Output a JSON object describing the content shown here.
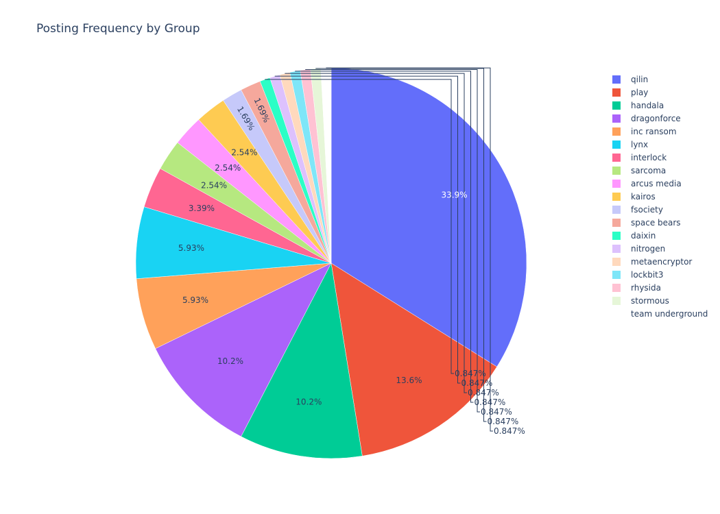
{
  "chart_data": {
    "type": "pie",
    "title": "Posting Frequency by Group",
    "labels": [
      "qilin",
      "play",
      "handala",
      "dragonforce",
      "inc ransom",
      "lynx",
      "interlock",
      "sarcoma",
      "arcus media",
      "kairos",
      "fsociety",
      "space bears",
      "daixin",
      "nitrogen",
      "metaencryptor",
      "lockbit3",
      "rhysida",
      "stormous",
      "team underground"
    ],
    "values": [
      40,
      16,
      12,
      12,
      7,
      7,
      4,
      3,
      3,
      3,
      2,
      2,
      1,
      1,
      1,
      1,
      1,
      1,
      1
    ],
    "percent_labels": [
      "33.9%",
      "13.6%",
      "10.2%",
      "10.2%",
      "5.93%",
      "5.93%",
      "3.39%",
      "2.54%",
      "2.54%",
      "2.54%",
      "1.69%",
      "1.69%",
      "0.847%",
      "0.847%",
      "0.847%",
      "0.847%",
      "0.847%",
      "0.847%",
      "0.847%"
    ],
    "colors": [
      "#636efa",
      "#EF553B",
      "#00cc96",
      "#ab63fa",
      "#FFA15A",
      "#19d3f3",
      "#FF6692",
      "#B6E880",
      "#FF97FF",
      "#FECB52",
      "#c6c9fa",
      "#f5a89c",
      "#2bffc6",
      "#ddc1fd",
      "#ffd9bd",
      "#7ee6f8",
      "#ffc2d3",
      "#e6f6d8",
      "#ffffff"
    ],
    "legend_placement": "right",
    "sort": "descending",
    "direction": "clockwise",
    "start": "12 o'clock"
  }
}
